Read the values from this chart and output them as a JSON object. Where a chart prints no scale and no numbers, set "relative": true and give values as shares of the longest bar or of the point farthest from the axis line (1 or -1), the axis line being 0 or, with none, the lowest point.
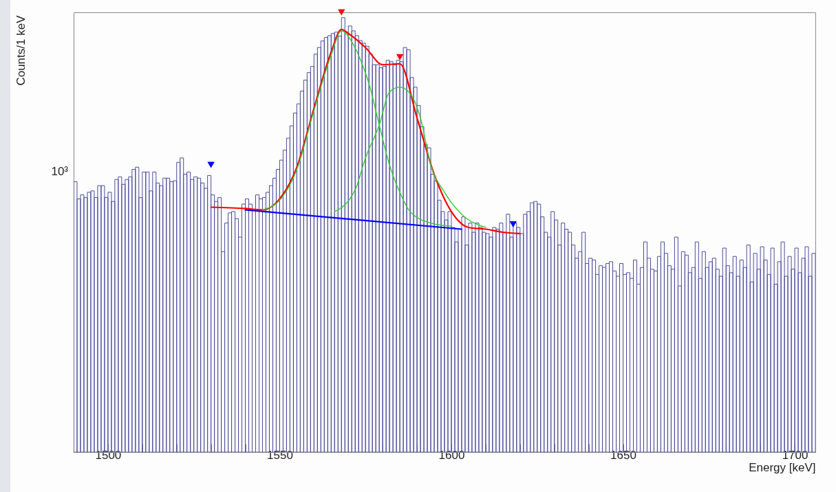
{
  "chart_data": {
    "type": "histogram",
    "xlabel": "Energy [keV]",
    "ylabel": "Counts/1 keV",
    "relative": true,
    "grid": false,
    "color": "#4b4b9c",
    "annotations": [
      "10³"
    ],
    "xlim": [
      1490,
      1706
    ],
    "xticks": [
      {
        "value": 1490,
        "label": null
      },
      1500,
      {
        "value": 1510,
        "label": null
      },
      {
        "value": 1520,
        "label": null
      },
      {
        "value": 1530,
        "label": null
      },
      {
        "value": 1540,
        "label": null
      },
      1550,
      {
        "value": 1560,
        "label": null
      },
      {
        "value": 1570,
        "label": null
      },
      {
        "value": 1580,
        "label": null
      },
      {
        "value": 1590,
        "label": null
      },
      1600,
      {
        "value": 1610,
        "label": null
      },
      {
        "value": 1620,
        "label": null
      },
      {
        "value": 1630,
        "label": null
      },
      {
        "value": 1640,
        "label": null
      },
      1650,
      {
        "value": 1660,
        "label": null
      },
      {
        "value": 1670,
        "label": null
      },
      {
        "value": 1680,
        "label": null
      },
      {
        "value": 1690,
        "label": null
      },
      1700
    ],
    "bins": [
      1490,
      1491,
      1492,
      1493,
      1494,
      1495,
      1496,
      1497,
      1498,
      1499,
      1500,
      1501,
      1502,
      1503,
      1504,
      1505,
      1506,
      1507,
      1508,
      1509,
      1510,
      1511,
      1512,
      1513,
      1514,
      1515,
      1516,
      1517,
      1518,
      1519,
      1520,
      1521,
      1522,
      1523,
      1524,
      1525,
      1526,
      1527,
      1528,
      1529,
      1530,
      1531,
      1532,
      1533,
      1534,
      1535,
      1536,
      1537,
      1538,
      1539,
      1540,
      1541,
      1542,
      1543,
      1544,
      1545,
      1546,
      1547,
      1548,
      1549,
      1550,
      1551,
      1552,
      1553,
      1554,
      1555,
      1556,
      1557,
      1558,
      1559,
      1560,
      1561,
      1562,
      1563,
      1564,
      1565,
      1566,
      1567,
      1568,
      1569,
      1570,
      1571,
      1572,
      1573,
      1574,
      1575,
      1576,
      1577,
      1578,
      1579,
      1580,
      1581,
      1582,
      1583,
      1584,
      1585,
      1586,
      1587,
      1588,
      1589,
      1590,
      1591,
      1592,
      1593,
      1594,
      1595,
      1596,
      1597,
      1598,
      1599,
      1600,
      1601,
      1602,
      1603,
      1604,
      1605,
      1606,
      1607,
      1608,
      1609,
      1610,
      1611,
      1612,
      1613,
      1614,
      1615,
      1616,
      1617,
      1618,
      1619,
      1620,
      1621,
      1622,
      1623,
      1624,
      1625,
      1626,
      1627,
      1628,
      1629,
      1630,
      1631,
      1632,
      1633,
      1634,
      1635,
      1636,
      1637,
      1638,
      1639,
      1640,
      1641,
      1642,
      1643,
      1644,
      1645,
      1646,
      1647,
      1648,
      1649,
      1650,
      1651,
      1652,
      1653,
      1654,
      1655,
      1656,
      1657,
      1658,
      1659,
      1660,
      1661,
      1662,
      1663,
      1664,
      1665,
      1666,
      1667,
      1668,
      1669,
      1670,
      1671,
      1672,
      1673,
      1674,
      1675,
      1676,
      1677,
      1678,
      1679,
      1680,
      1681,
      1682,
      1683,
      1684,
      1685,
      1686,
      1687,
      1688,
      1689,
      1690,
      1691,
      1692,
      1693,
      1694,
      1695,
      1696,
      1697,
      1698,
      1699,
      1700,
      1701,
      1702,
      1703,
      1704,
      1705,
      1706
    ],
    "values": [
      0.615,
      0.576,
      0.585,
      0.579,
      0.591,
      0.594,
      0.579,
      0.606,
      0.606,
      0.579,
      0.591,
      0.57,
      0.62,
      0.626,
      0.609,
      0.62,
      0.626,
      0.643,
      0.648,
      0.579,
      0.637,
      0.637,
      0.594,
      0.637,
      0.612,
      0.606,
      0.623,
      0.623,
      0.615,
      0.617,
      0.659,
      0.669,
      0.632,
      0.637,
      0.62,
      0.626,
      0.623,
      0.612,
      0.6,
      0.629,
      0.585,
      0.57,
      0.579,
      0.456,
      0.521,
      0.544,
      0.547,
      0.531,
      0.489,
      0.564,
      0.576,
      0.564,
      0.551,
      0.585,
      0.576,
      0.579,
      0.591,
      0.606,
      0.623,
      0.643,
      0.664,
      0.687,
      0.714,
      0.742,
      0.771,
      0.792,
      0.821,
      0.846,
      0.863,
      0.877,
      0.905,
      0.92,
      0.935,
      0.943,
      0.947,
      0.952,
      0.955,
      0.946,
      0.988,
      0.955,
      0.969,
      0.958,
      0.947,
      0.936,
      0.93,
      0.923,
      0.905,
      0.881,
      0.881,
      0.874,
      0.877,
      0.891,
      0.888,
      0.881,
      0.891,
      0.888,
      0.92,
      0.915,
      0.852,
      0.83,
      0.788,
      0.74,
      0.7,
      0.692,
      0.632,
      0.617,
      0.573,
      0.547,
      0.528,
      0.547,
      0.511,
      0.478,
      0.507,
      0.535,
      0.471,
      0.521,
      0.5,
      0.521,
      0.511,
      0.5,
      0.497,
      0.489,
      0.511,
      0.507,
      0.521,
      0.5,
      0.541,
      0.489,
      0.521,
      0.511,
      0.497,
      0.541,
      0.547,
      0.567,
      0.57,
      0.564,
      0.535,
      0.5,
      0.489,
      0.547,
      0.528,
      0.471,
      0.521,
      0.507,
      0.5,
      0.471,
      0.441,
      0.456,
      0.5,
      0.429,
      0.441,
      0.437,
      0.404,
      0.424,
      0.42,
      0.429,
      0.433,
      0.412,
      0.4,
      0.429,
      0.404,
      0.408,
      0.395,
      0.437,
      0.382,
      0.42,
      0.478,
      0.441,
      0.416,
      0.412,
      0.445,
      0.478,
      0.452,
      0.424,
      0.416,
      0.489,
      0.378,
      0.456,
      0.448,
      0.408,
      0.42,
      0.478,
      0.395,
      0.456,
      0.42,
      0.433,
      0.441,
      0.416,
      0.4,
      0.464,
      0.424,
      0.408,
      0.445,
      0.4,
      0.437,
      0.42,
      0.471,
      0.387,
      0.452,
      0.416,
      0.467,
      0.437,
      0.404,
      0.464,
      0.382,
      0.433,
      0.478,
      0.4,
      0.445,
      0.416,
      0.464,
      0.408,
      0.441,
      0.467,
      0.4,
      0.452
    ],
    "series": [
      {
        "type": "line",
        "color": "#0000ff",
        "line_style": "solid",
        "x": [
          1540,
          1603
        ],
        "values": [
          0.551,
          0.507
        ]
      },
      {
        "type": "line",
        "color": "#33cc33",
        "line_style": "dotted",
        "x": [
          1545,
          1550,
          1555,
          1560,
          1565,
          1568,
          1571,
          1574,
          1576,
          1579,
          1582,
          1585,
          1588,
          1594,
          1600
        ],
        "values": [
          0.551,
          0.573,
          0.643,
          0.777,
          0.903,
          0.958,
          0.933,
          0.883,
          0.838,
          0.744,
          0.653,
          0.591,
          0.547,
          0.521,
          0.514
        ]
      },
      {
        "type": "line",
        "color": "#33cc33",
        "line_style": "dotted",
        "x": [
          1566,
          1572,
          1575,
          1579,
          1582,
          1585,
          1588,
          1591,
          1594,
          1598,
          1603,
          1610
        ],
        "values": [
          0.547,
          0.597,
          0.669,
          0.744,
          0.819,
          0.83,
          0.815,
          0.76,
          0.653,
          0.591,
          0.541,
          0.511
        ]
      },
      {
        "type": "line",
        "color": "#ff0000",
        "line_style": "solid",
        "x": [
          1530,
          1540,
          1545,
          1550,
          1555,
          1560,
          1565,
          1568,
          1570,
          1575,
          1580,
          1585,
          1590,
          1595,
          1600,
          1605,
          1610,
          1615,
          1620
        ],
        "values": [
          0.557,
          0.554,
          0.551,
          0.576,
          0.648,
          0.782,
          0.91,
          0.961,
          0.952,
          0.92,
          0.881,
          0.883,
          0.76,
          0.632,
          0.547,
          0.511,
          0.507,
          0.5,
          0.497
        ]
      },
      {
        "type": "scatter",
        "marker": "triangle",
        "color": "#ff0000",
        "x": [
          1568,
          1585
        ],
        "values": [
          1.0,
          0.898
        ]
      },
      {
        "type": "scatter",
        "marker": "triangle",
        "color": "#0000ff",
        "x": [
          1530,
          1618
        ],
        "values": [
          0.653,
          0.518
        ]
      }
    ]
  }
}
